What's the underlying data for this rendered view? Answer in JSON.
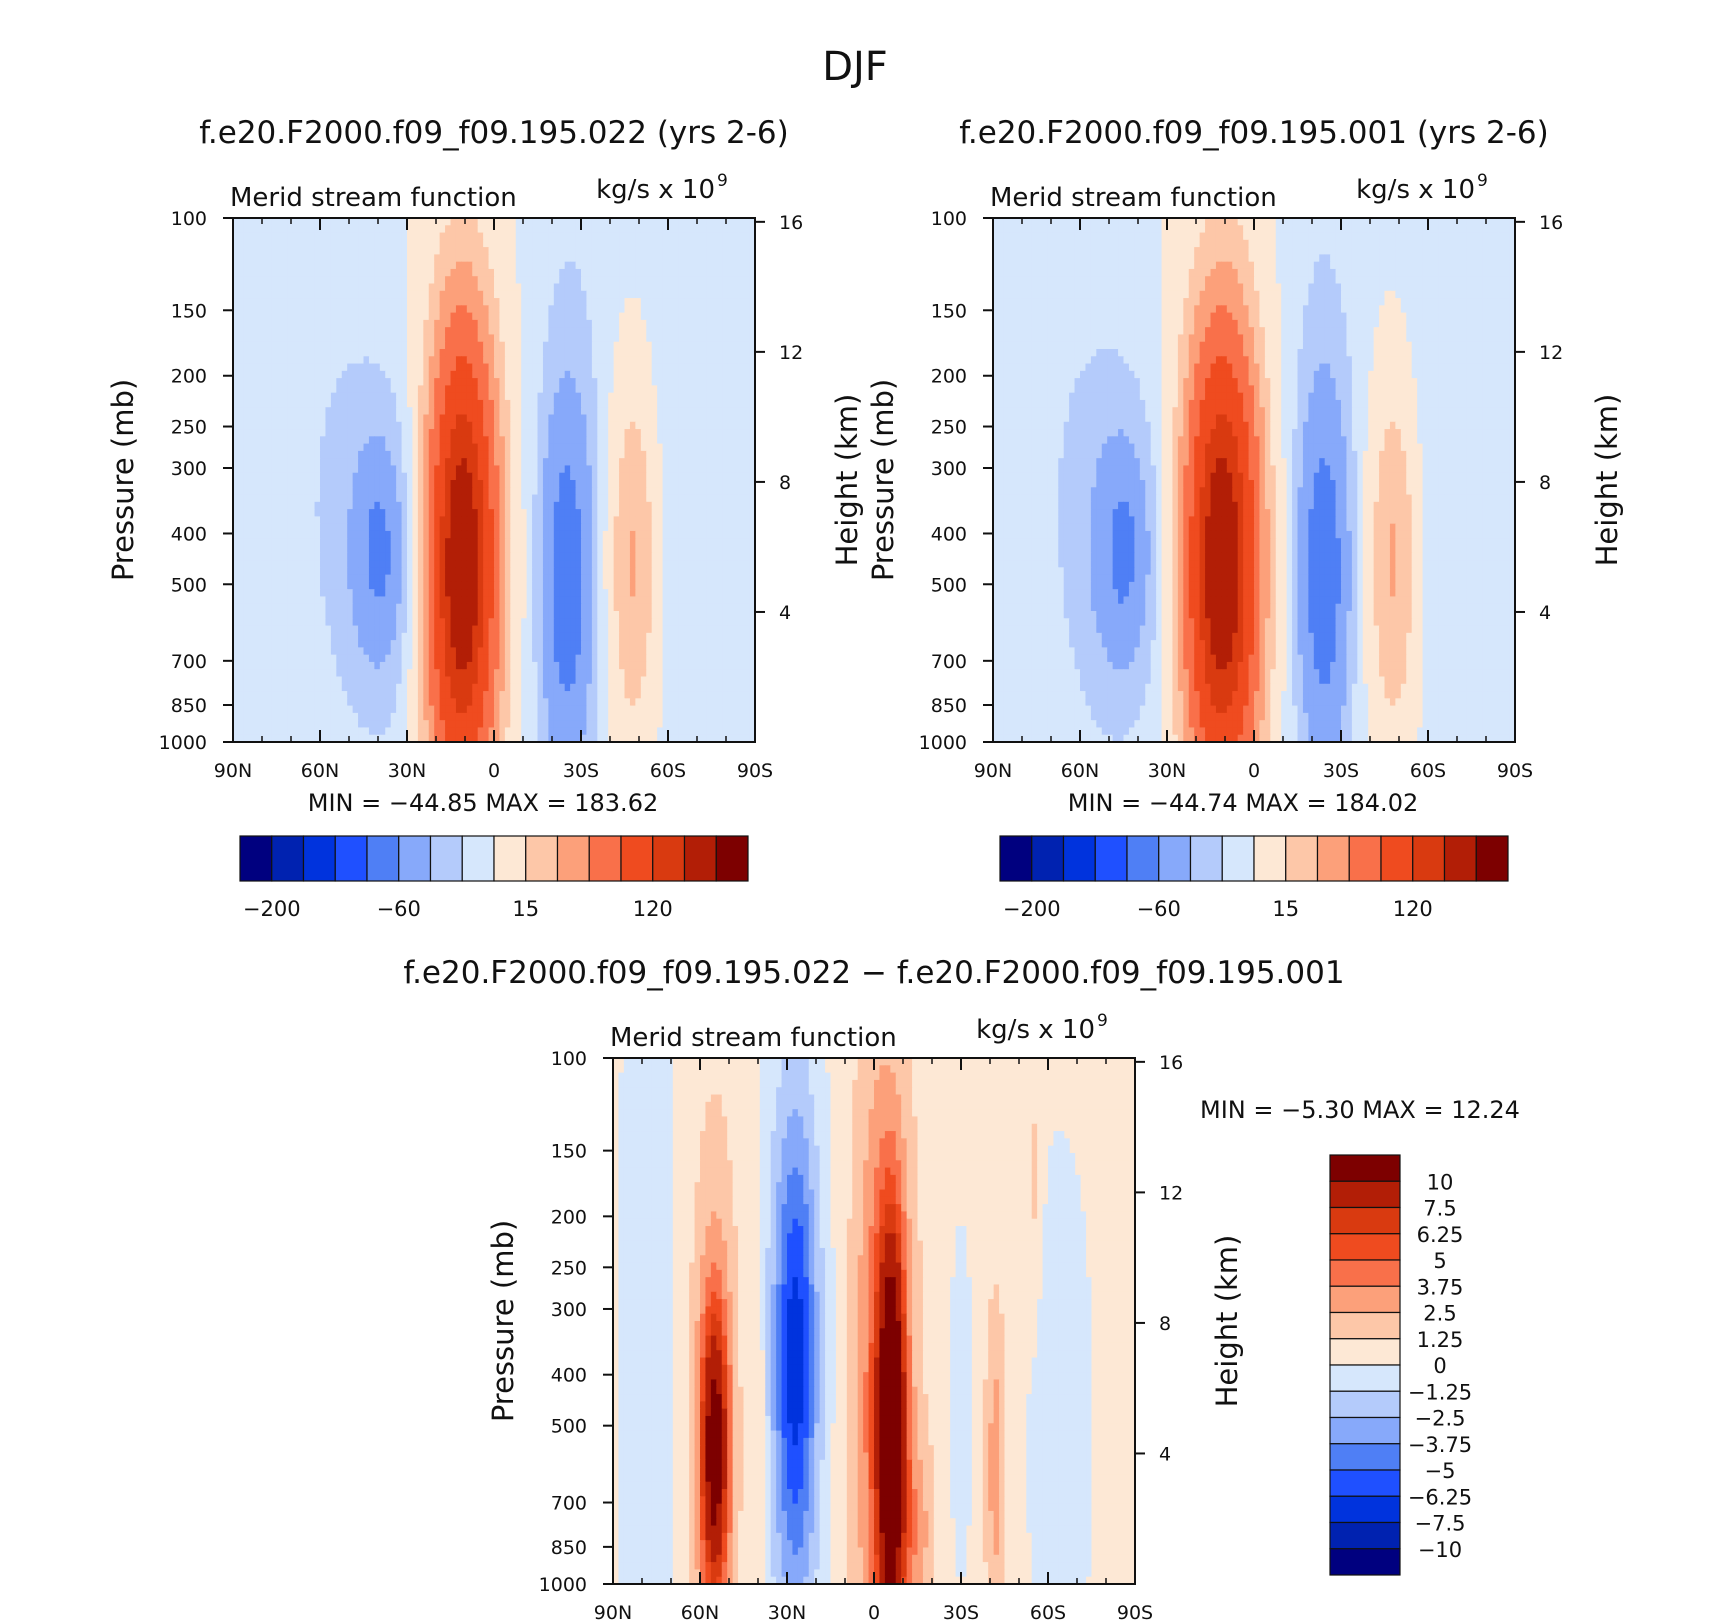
{
  "figure_title": "DJF",
  "colors": {
    "abs_palette": [
      "#00007f",
      "#0022b0",
      "#0033dd",
      "#1f50ff",
      "#4f7ff5",
      "#87a9fa",
      "#b4cbfb",
      "#d6e7fc",
      "#fde8d5",
      "#fdc7a8",
      "#fca07a",
      "#f9704a",
      "#ef4b1f",
      "#d93a10",
      "#b21e06",
      "#7d0000"
    ],
    "diff_palette": [
      "#00007f",
      "#0022b0",
      "#0033dd",
      "#1f50ff",
      "#4f7ff5",
      "#87a9fa",
      "#b4cbfb",
      "#d6e7fc",
      "#fde8d5",
      "#fdc7a8",
      "#fca07a",
      "#f9704a",
      "#ef4b1f",
      "#d93a10",
      "#b21e06",
      "#7d0000"
    ]
  },
  "chart_data": [
    {
      "id": "panel1",
      "type": "heatmap",
      "title": "f.e20.F2000.f09_f09.195.022 (yrs 2-6)",
      "left_string": "Merid stream function",
      "right_string": "kg/s x 10",
      "right_string_exp": "9",
      "ylabel": "Pressure (mb)",
      "ylabel_right": "Height (km)",
      "xticks": [
        "90N",
        "60N",
        "30N",
        "0",
        "30S",
        "60S",
        "90S"
      ],
      "xlim": [
        90,
        -90
      ],
      "yticks": [
        "100",
        "150",
        "200",
        "250",
        "300",
        "400",
        "500",
        "700",
        "850",
        "1000"
      ],
      "ylim": [
        1000,
        100
      ],
      "y_log": true,
      "yticks_right": [
        "16",
        "12",
        "8",
        "4"
      ],
      "min_max": "MIN  =  −44.85    MAX  =  183.62",
      "levels": [
        -200,
        -150,
        -100,
        -60,
        -40,
        -20,
        -10,
        0,
        15,
        30,
        50,
        80,
        120,
        150,
        200
      ],
      "colorbar_labels": [
        "−200",
        "−60",
        "15",
        "120"
      ],
      "field": [
        {
          "lat": 78,
          "latw": 4,
          "p": 600,
          "pw": 0.12,
          "amp": -3
        },
        {
          "lat": 38,
          "latw": 11,
          "p": 450,
          "pw": 0.55,
          "amp": -22
        },
        {
          "lat": 40,
          "latw": 4.5,
          "p": 430,
          "pw": 0.24,
          "amp": -24
        },
        {
          "lat": 58,
          "latw": 16,
          "p": 300,
          "pw": 0.9,
          "amp": -8
        },
        {
          "lat": 11,
          "latw": 8,
          "p": 460,
          "pw": 0.7,
          "amp": 188
        },
        {
          "lat": -25,
          "latw": 5.5,
          "p": 500,
          "pw": 0.5,
          "amp": -44
        },
        {
          "lat": -26,
          "latw": 10,
          "p": 400,
          "pw": 1.3,
          "amp": -14
        },
        {
          "lat": -48,
          "latw": 6,
          "p": 450,
          "pw": 0.55,
          "amp": 36
        },
        {
          "lat": -70,
          "latw": 16,
          "p": 320,
          "pw": 1.1,
          "amp": -10
        }
      ]
    },
    {
      "id": "panel2",
      "type": "heatmap",
      "title": "f.e20.F2000.f09_f09.195.001 (yrs 2-6)",
      "left_string": "Merid stream function",
      "right_string": "kg/s x 10",
      "right_string_exp": "9",
      "ylabel": "Pressure (mb)",
      "ylabel_right": "Height (km)",
      "xticks": [
        "90N",
        "60N",
        "30N",
        "0",
        "30S",
        "60S",
        "90S"
      ],
      "xlim": [
        90,
        -90
      ],
      "yticks": [
        "100",
        "150",
        "200",
        "250",
        "300",
        "400",
        "500",
        "700",
        "850",
        "1000"
      ],
      "ylim": [
        1000,
        100
      ],
      "y_log": true,
      "yticks_right": [
        "16",
        "12",
        "8",
        "4"
      ],
      "min_max": "MIN  =  −44.74    MAX  =  184.02",
      "levels": [
        -200,
        -150,
        -100,
        -60,
        -40,
        -20,
        -10,
        0,
        15,
        30,
        50,
        80,
        120,
        150,
        200
      ],
      "colorbar_labels": [
        "−200",
        "−60",
        "15",
        "120"
      ],
      "field": [
        {
          "lat": 78,
          "latw": 4,
          "p": 600,
          "pw": 0.12,
          "amp": -3
        },
        {
          "lat": 45,
          "latw": 11,
          "p": 450,
          "pw": 0.55,
          "amp": -22
        },
        {
          "lat": 45,
          "latw": 4.5,
          "p": 430,
          "pw": 0.24,
          "amp": -24
        },
        {
          "lat": 62,
          "latw": 16,
          "p": 300,
          "pw": 0.9,
          "amp": -8
        },
        {
          "lat": 11,
          "latw": 8.5,
          "p": 460,
          "pw": 0.7,
          "amp": 188
        },
        {
          "lat": -24,
          "latw": 5.5,
          "p": 480,
          "pw": 0.5,
          "amp": -44
        },
        {
          "lat": -24,
          "latw": 10,
          "p": 400,
          "pw": 1.3,
          "amp": -14
        },
        {
          "lat": -48,
          "latw": 6,
          "p": 450,
          "pw": 0.55,
          "amp": 36
        },
        {
          "lat": -70,
          "latw": 16,
          "p": 320,
          "pw": 1.1,
          "amp": -10
        }
      ]
    },
    {
      "id": "panel3",
      "type": "heatmap",
      "title": "f.e20.F2000.f09_f09.195.022 − f.e20.F2000.f09_f09.195.001",
      "left_string": "Merid stream function",
      "right_string": "kg/s x 10",
      "right_string_exp": "9",
      "ylabel": "Pressure (mb)",
      "ylabel_right": "Height (km)",
      "xticks": [
        "90N",
        "60N",
        "30N",
        "0",
        "30S",
        "60S",
        "90S"
      ],
      "xlim": [
        90,
        -90
      ],
      "yticks": [
        "100",
        "150",
        "200",
        "250",
        "300",
        "400",
        "500",
        "700",
        "850",
        "1000"
      ],
      "ylim": [
        1000,
        100
      ],
      "y_log": true,
      "yticks_right": [
        "16",
        "12",
        "8",
        "4"
      ],
      "min_max_label": "MIN  =     −5.30    MAX  =     12.24",
      "levels": [
        -10,
        -7.5,
        -6.25,
        -5,
        -3.75,
        -2.5,
        -1.25,
        0,
        1.25,
        2.5,
        3.75,
        5,
        6.25,
        7.5,
        10
      ],
      "colorbar_labels": [
        "10",
        "7.5",
        "6.25",
        "5",
        "3.75",
        "2.5",
        "1.25",
        "0",
        "−1.25",
        "−2.5",
        "−3.75",
        "−5",
        "−6.25",
        "−7.5",
        "−10"
      ],
      "field": [
        {
          "lat": 0,
          "latw": 200,
          "p": 500,
          "pw": 9,
          "amp": 0.6
        },
        {
          "lat": 78,
          "latw": 8,
          "p": 400,
          "pw": 2,
          "amp": -1.3
        },
        {
          "lat": 55,
          "latw": 3.2,
          "p": 560,
          "pw": 0.42,
          "amp": 9.5
        },
        {
          "lat": 55,
          "latw": 6,
          "p": 500,
          "pw": 0.9,
          "amp": 2.6
        },
        {
          "lat": 40,
          "latw": 2,
          "p": 500,
          "pw": 0.6,
          "amp": 1.4
        },
        {
          "lat": 27,
          "latw": 5,
          "p": 380,
          "pw": 0.7,
          "amp": -5.5
        },
        {
          "lat": 28,
          "latw": 9,
          "p": 350,
          "pw": 1.2,
          "amp": -2.2
        },
        {
          "lat": -6,
          "latw": 3.2,
          "p": 520,
          "pw": 0.6,
          "amp": 12
        },
        {
          "lat": -3,
          "latw": 7,
          "p": 450,
          "pw": 1.1,
          "amp": 4.2
        },
        {
          "lat": -15,
          "latw": 4,
          "p": 800,
          "pw": 0.3,
          "amp": 2
        },
        {
          "lat": -30,
          "latw": 3,
          "p": 450,
          "pw": 0.6,
          "amp": -1.4
        },
        {
          "lat": -42,
          "latw": 2.5,
          "p": 600,
          "pw": 0.5,
          "amp": 2.6
        },
        {
          "lat": -55,
          "latw": 2,
          "p": 180,
          "pw": 0.4,
          "amp": 1.3
        },
        {
          "lat": -64,
          "latw": 8,
          "p": 500,
          "pw": 0.9,
          "amp": -1.6
        }
      ]
    }
  ]
}
